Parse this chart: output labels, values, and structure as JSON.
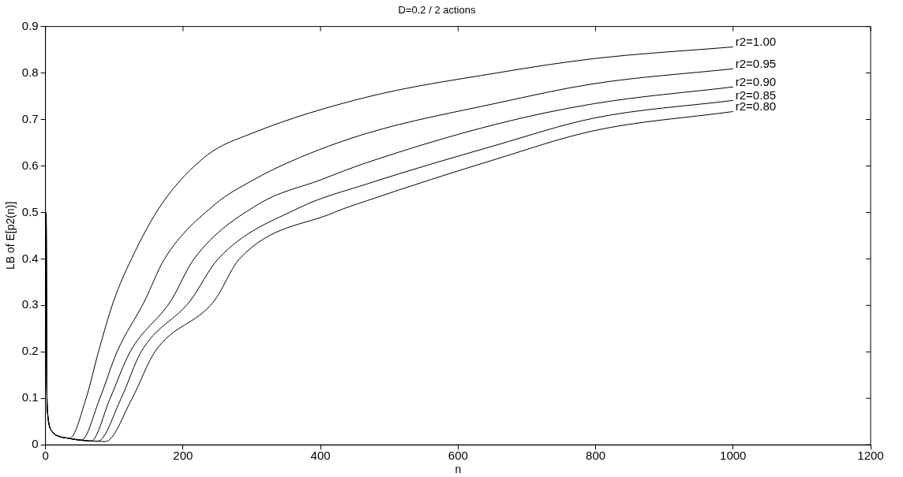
{
  "chart_data": {
    "type": "line",
    "title": "D=0.2 / 2 actions",
    "xlabel": "n",
    "ylabel": "LB of E[p2(n)]",
    "xlim": [
      0,
      1200
    ],
    "xticks": [
      0,
      200,
      400,
      600,
      800,
      1000,
      1200
    ],
    "ylim": [
      0,
      0.9
    ],
    "yticks": [
      0,
      0.1,
      0.2,
      0.3,
      0.4,
      0.5,
      0.6,
      0.7,
      0.8,
      0.9
    ],
    "marker": "none",
    "line_style": "solid",
    "legend": "right",
    "series": [
      {
        "name": "r2=1.00",
        "color": "#000000",
        "x": [
          1,
          2,
          3,
          5,
          10,
          20,
          30,
          35,
          59,
          77,
          99,
          125,
          169,
          235,
          300,
          467,
          656,
          798,
          1000
        ],
        "values": [
          0.5,
          0.12,
          0.07,
          0.045,
          0.028,
          0.018,
          0.015,
          0.014,
          0.1,
          0.2,
          0.309,
          0.4,
          0.518,
          0.623,
          0.67,
          0.748,
          0.8,
          0.831,
          0.856
        ]
      },
      {
        "name": "r2=0.95",
        "color": "#000000",
        "x": [
          1,
          2,
          3,
          5,
          10,
          20,
          30,
          40,
          52,
          79,
          104,
          144,
          173,
          247,
          300,
          357,
          467,
          656,
          798,
          1000
        ],
        "values": [
          0.5,
          0.12,
          0.07,
          0.045,
          0.028,
          0.018,
          0.015,
          0.012,
          0.01,
          0.1,
          0.2,
          0.309,
          0.4,
          0.518,
          0.568,
          0.61,
          0.67,
          0.735,
          0.777,
          0.809
        ]
      },
      {
        "name": "r2=0.90",
        "color": "#000000",
        "x": [
          1,
          2,
          3,
          5,
          10,
          20,
          30,
          45,
          66,
          94,
          123,
          182,
          216,
          310,
          400,
          467,
          656,
          798,
          1000
        ],
        "values": [
          0.5,
          0.12,
          0.07,
          0.045,
          0.028,
          0.018,
          0.015,
          0.011,
          0.008,
          0.1,
          0.2,
          0.309,
          0.4,
          0.518,
          0.57,
          0.607,
          0.69,
          0.734,
          0.77
        ]
      },
      {
        "name": "r2=0.85",
        "color": "#000000",
        "x": [
          1,
          2,
          3,
          5,
          10,
          20,
          30,
          50,
          76,
          110,
          139,
          210,
          251,
          369,
          467,
          656,
          798,
          1000
        ],
        "values": [
          0.5,
          0.12,
          0.07,
          0.045,
          0.028,
          0.018,
          0.015,
          0.01,
          0.008,
          0.1,
          0.2,
          0.309,
          0.4,
          0.51,
          0.561,
          0.645,
          0.703,
          0.741
        ]
      },
      {
        "name": "r2=0.80",
        "color": "#000000",
        "x": [
          1,
          2,
          3,
          5,
          10,
          20,
          30,
          55,
          87,
          126,
          159,
          245,
          282,
          420,
          467,
          656,
          798,
          1000
        ],
        "values": [
          0.5,
          0.12,
          0.07,
          0.045,
          0.028,
          0.018,
          0.015,
          0.01,
          0.007,
          0.1,
          0.2,
          0.309,
          0.4,
          0.5,
          0.525,
          0.615,
          0.676,
          0.717
        ]
      }
    ]
  }
}
